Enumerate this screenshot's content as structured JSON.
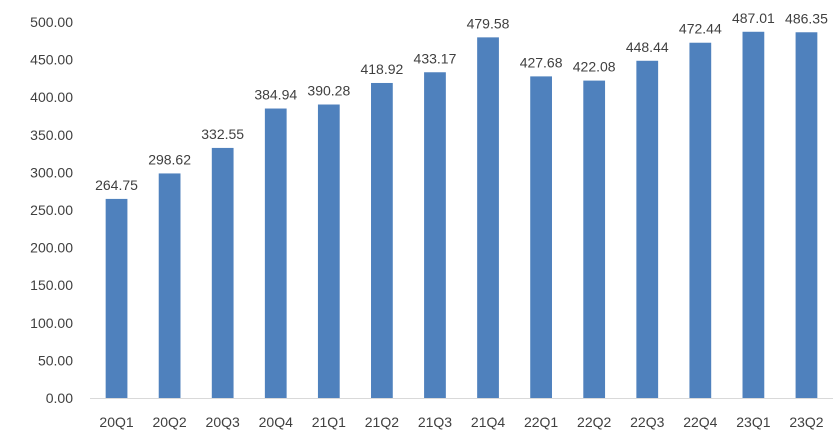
{
  "chart_data": {
    "type": "bar",
    "title": "",
    "xlabel": "",
    "ylabel": "",
    "categories": [
      "20Q1",
      "20Q2",
      "20Q3",
      "20Q4",
      "21Q1",
      "21Q2",
      "21Q3",
      "21Q4",
      "22Q1",
      "22Q2",
      "22Q3",
      "22Q4",
      "23Q1",
      "23Q2"
    ],
    "values": [
      264.75,
      298.62,
      332.55,
      384.94,
      390.28,
      418.92,
      433.17,
      479.58,
      427.68,
      422.08,
      448.44,
      472.44,
      487.01,
      486.35
    ],
    "value_labels": [
      "264.75",
      "298.62",
      "332.55",
      "384.94",
      "390.28",
      "418.92",
      "433.17",
      "479.58",
      "427.68",
      "422.08",
      "448.44",
      "472.44",
      "487.01",
      "486.35"
    ],
    "ylim": [
      0,
      500
    ],
    "y_ticks": [
      "0.00",
      "50.00",
      "100.00",
      "150.00",
      "200.00",
      "250.00",
      "300.00",
      "350.00",
      "400.00",
      "450.00",
      "500.00"
    ],
    "grid": false,
    "legend": "none",
    "bar_color": "#4f81bd"
  }
}
